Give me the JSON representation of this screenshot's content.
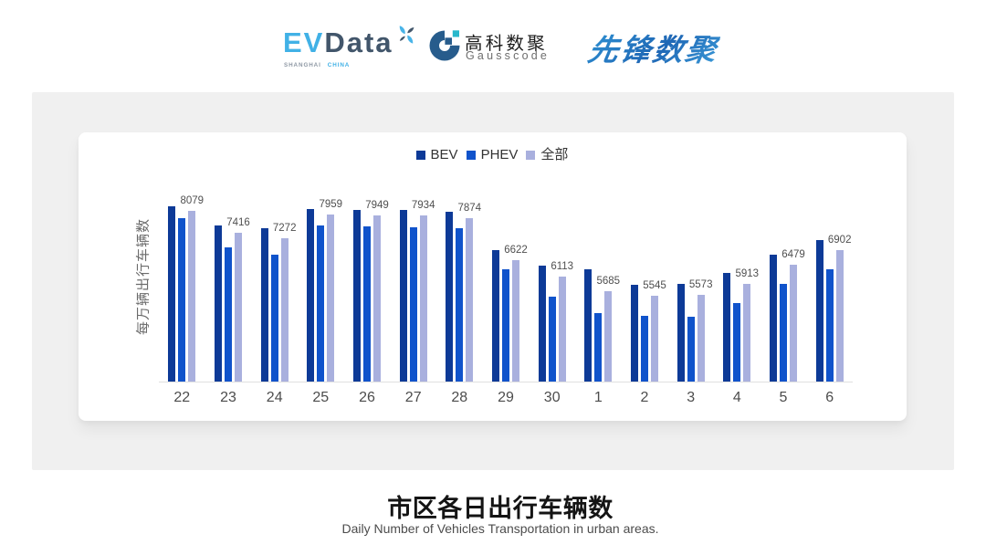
{
  "logos": {
    "evdata": {
      "name_part1": "EV",
      "name_part2": "Data",
      "subtext_part1": "SHANGHAI",
      "subtext_part2": "CHINA",
      "color_part1": "#41b1e6",
      "color_part2": "#42566b"
    },
    "gausscode": {
      "name_cn": "高科数聚",
      "name_en": "Gausscode",
      "mark_navy": "#275c8c",
      "mark_teal": "#28b8cc"
    },
    "pioneer": {
      "name_cn": "先锋数聚",
      "color": "#2a7fc6"
    }
  },
  "chart_data": {
    "type": "bar",
    "title": "市区各日出行车辆数",
    "subtitle": "Daily Number of Vehicles Transportation in urban areas.",
    "ylabel": "每万辆出行车辆数",
    "xlabel": "",
    "categories": [
      "22",
      "23",
      "24",
      "25",
      "26",
      "27",
      "28",
      "29",
      "30",
      "1",
      "2",
      "3",
      "4",
      "5",
      "6"
    ],
    "series": [
      {
        "name": "BEV",
        "color": "#0d3a97",
        "values": [
          8210,
          7650,
          7570,
          8130,
          8100,
          8110,
          8040,
          6900,
          6460,
          6330,
          5890,
          5920,
          6230,
          6790,
          7200
        ]
      },
      {
        "name": "PHEV",
        "color": "#1053cb",
        "values": [
          7850,
          6990,
          6780,
          7640,
          7620,
          7600,
          7560,
          6350,
          5520,
          5050,
          4950,
          4920,
          5330,
          5920,
          6350
        ]
      },
      {
        "name": "全部",
        "color": "#a9b0de",
        "values": [
          8079,
          7416,
          7272,
          7959,
          7949,
          7934,
          7874,
          6622,
          6113,
          5685,
          5545,
          5573,
          5913,
          6479,
          6902
        ],
        "value_labels": true
      }
    ],
    "ylim": [
      3000,
      8500
    ],
    "grid": false,
    "legend_position": "top-center",
    "value_label_color": "#4a4a4a",
    "axis_line_color": "#e0e0e0"
  }
}
